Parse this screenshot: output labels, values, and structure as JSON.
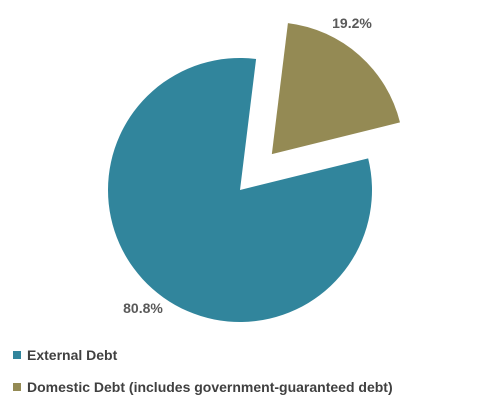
{
  "chart_data": {
    "type": "pie",
    "title": "",
    "slices": [
      {
        "label": "External Debt",
        "value": 80.8,
        "data_label": "80.8%",
        "color": "#31859C",
        "exploded": false
      },
      {
        "label": "Domestic Debt (includes government-guaranteed debt)",
        "value": 19.2,
        "data_label": "19.2%",
        "color": "#948A54",
        "exploded": true
      }
    ],
    "legend_position": "bottom-left"
  }
}
